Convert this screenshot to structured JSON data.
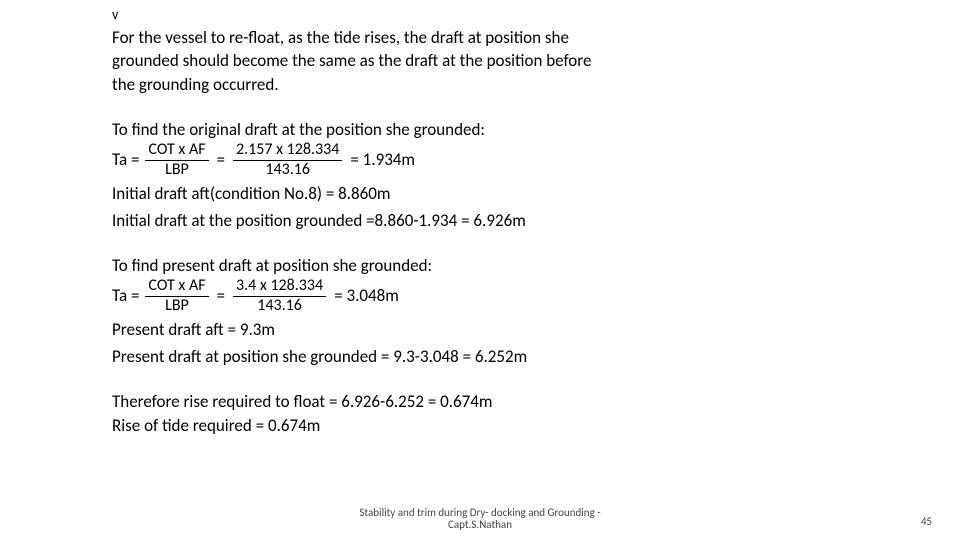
{
  "top_v": "v",
  "para1_l1": "For the vessel to re-float, as the tide rises, the draft at position she",
  "para1_l2": "grounded should become the same as the draft at the position before",
  "para1_l3": "the grounding occurred.",
  "sec1_title": "To find the original draft at the position she grounded:",
  "eq1": {
    "lead": "Ta =",
    "f1_num": "COT x AF",
    "f1_den": "LBP",
    "mid": "=",
    "f2_num": "2.157 x 128.334",
    "f2_den": "143.16",
    "tail": "= 1.934m"
  },
  "sec1_l1": "Initial draft aft(condition No.8) = 8.860m",
  "sec1_l2": "Initial draft at the position grounded =8.860-1.934 = 6.926m",
  "sec2_title": "To find present draft at position she grounded:",
  "eq2": {
    "lead": "Ta =",
    "f1_num": "COT x AF",
    "f1_den": "LBP",
    "mid": "=",
    "f2_num": "3.4 x 128.334",
    "f2_den": "143.16",
    "tail": "= 3.048m"
  },
  "sec2_l1": "Present draft aft = 9.3m",
  "sec2_l2": "Present draft at position she grounded = 9.3-3.048 = 6.252m",
  "concl_l1": "Therefore rise required to float = 6.926-6.252 = 0.674m",
  "concl_l2": "Rise of tide required = 0.674m",
  "footer_l1": "Stability and trim during Dry- docking and Grounding -",
  "footer_l2": "Capt.S.Nathan",
  "page_number": "45"
}
